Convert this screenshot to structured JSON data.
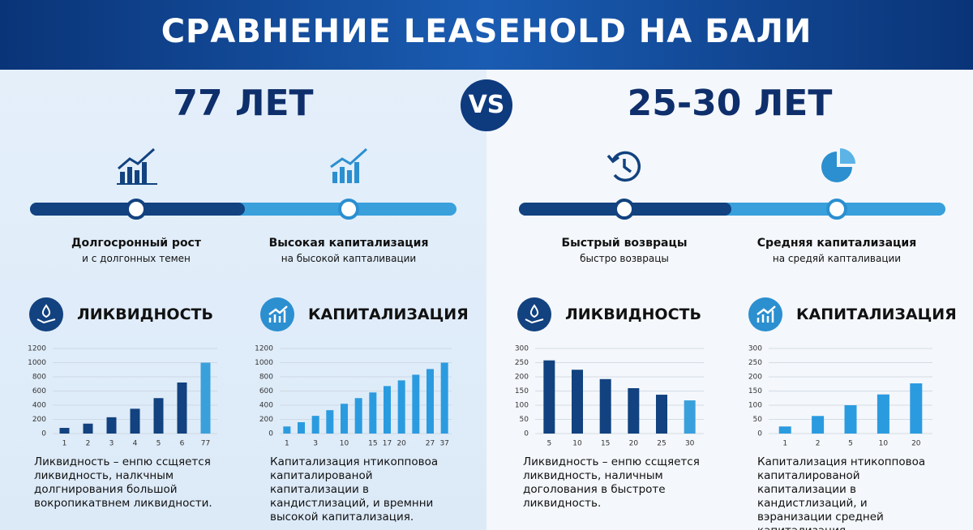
{
  "title": "СРАВНЕНИЕ LEASEHOLD НА БАЛИ",
  "vs": "VS",
  "left": {
    "term": "77 ЛЕТ",
    "items": [
      {
        "title": "Долгосронный рост",
        "subtitle": "и с долгонных темен"
      },
      {
        "title": "Высокая капитализация",
        "subtitle": "на бысокой капталивации"
      }
    ]
  },
  "right": {
    "term": "25-30 ЛЕТ",
    "items": [
      {
        "title": "Быстрый возврацы",
        "subtitle": "быстро возврацы"
      },
      {
        "title": "Средняя капитализация",
        "subtitle": "на средяй капталивации"
      }
    ]
  },
  "chart_data": [
    {
      "type": "bar",
      "title": "ЛИКВИДНОСТЬ",
      "categories": [
        "1",
        "2",
        "3",
        "4",
        "5",
        "6",
        "77"
      ],
      "values": [
        80,
        140,
        230,
        350,
        500,
        720,
        1000
      ],
      "colors": [
        "#12427f",
        "#12427f",
        "#12427f",
        "#12427f",
        "#12427f",
        "#12427f",
        "#3aa0dc"
      ],
      "ylim": [
        0,
        1200
      ],
      "yticks": [
        0,
        200,
        400,
        600,
        800,
        1000,
        1200
      ],
      "grid": true,
      "caption": "Ликвидность – енпю ссщяется ликвидность, налкчным долгнирования большой вокропикатвнем ликвидности."
    },
    {
      "type": "bar",
      "title": "КАПИТАЛИЗАЦИЯ",
      "categories": [
        "1",
        null,
        "3",
        null,
        "10",
        null,
        "15",
        "17",
        "20",
        null,
        "27",
        "37"
      ],
      "values": [
        100,
        160,
        250,
        330,
        420,
        500,
        580,
        670,
        750,
        830,
        910,
        1000
      ],
      "color": "#2b9be0",
      "ylim": [
        0,
        1200
      ],
      "yticks": [
        0,
        200,
        400,
        600,
        800,
        1000,
        1200
      ],
      "grid": true,
      "caption": "Капитализация нтикопповоа капиталированой капитализации в кандистлизаций, и времнни высокой капитализация."
    },
    {
      "type": "bar",
      "title": "ЛИКВИДНОСТЬ",
      "categories": [
        "5",
        "10",
        "15",
        "20",
        "25",
        "30"
      ],
      "values": [
        258,
        225,
        192,
        160,
        137,
        117
      ],
      "colors": [
        "#12427f",
        "#12427f",
        "#12427f",
        "#12427f",
        "#12427f",
        "#3aa0dc"
      ],
      "ylim": [
        0,
        300
      ],
      "yticks": [
        0,
        50,
        100,
        150,
        200,
        250,
        300
      ],
      "grid": true,
      "caption": "Ликвидность – енпю ссщяется ликвидность, наличным доголования в быстроте ликвидность."
    },
    {
      "type": "bar",
      "title": "КАПИТАЛИЗАЦИЯ",
      "categories": [
        "1",
        "2",
        "5",
        "10",
        "20"
      ],
      "values": [
        25,
        62,
        100,
        138,
        177
      ],
      "color": "#2b9be0",
      "ylim": [
        0,
        300
      ],
      "yticks": [
        0,
        50,
        100,
        150,
        200,
        250,
        300
      ],
      "grid": true,
      "caption": "Капитализация нтикопповоа капиталированой капитализации в кандистлизаций, и вэранизации средней капитализация."
    }
  ]
}
